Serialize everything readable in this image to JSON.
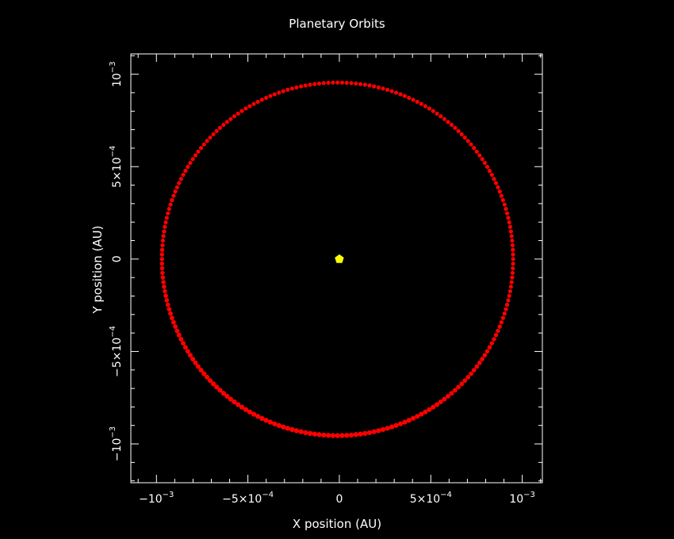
{
  "colors": {
    "background": "#000000",
    "axes": "#ffffff",
    "orbit": "#ff0000",
    "star": "#ffff00"
  },
  "chart_data": {
    "type": "scatter",
    "title": "Planetary Orbits",
    "xlabel": "X position (AU)",
    "ylabel": "Y position (AU)",
    "xlim": [
      -0.00114,
      0.00111
    ],
    "ylim": [
      -0.00121,
      0.00111
    ],
    "grid": false,
    "x_ticks": [
      {
        "value": -0.001,
        "mantissa": "−10",
        "exponent": "−3"
      },
      {
        "value": -0.0005,
        "mantissa": "−5×10",
        "exponent": "−4"
      },
      {
        "value": 0,
        "mantissa": "0",
        "exponent": ""
      },
      {
        "value": 0.0005,
        "mantissa": "5×10",
        "exponent": "−4"
      },
      {
        "value": 0.001,
        "mantissa": "10",
        "exponent": "−3"
      }
    ],
    "y_ticks": [
      {
        "value": -0.001,
        "mantissa": "−10",
        "exponent": "−3"
      },
      {
        "value": -0.0005,
        "mantissa": "−5×10",
        "exponent": "−4"
      },
      {
        "value": 0,
        "mantissa": "0",
        "exponent": ""
      },
      {
        "value": 0.0005,
        "mantissa": "5×10",
        "exponent": "−4"
      },
      {
        "value": 0.001,
        "mantissa": "10",
        "exponent": "−3"
      }
    ],
    "series": [
      {
        "kind": "orbit",
        "color": "#ff0000",
        "center_x": -1e-05,
        "center_y": 0.0,
        "radius_x": 0.00096,
        "radius_y": 0.000955,
        "band_width": 1e-05,
        "points": 240
      },
      {
        "kind": "star",
        "color": "#ffff00",
        "x": 0.0,
        "y": 0.0
      }
    ]
  }
}
